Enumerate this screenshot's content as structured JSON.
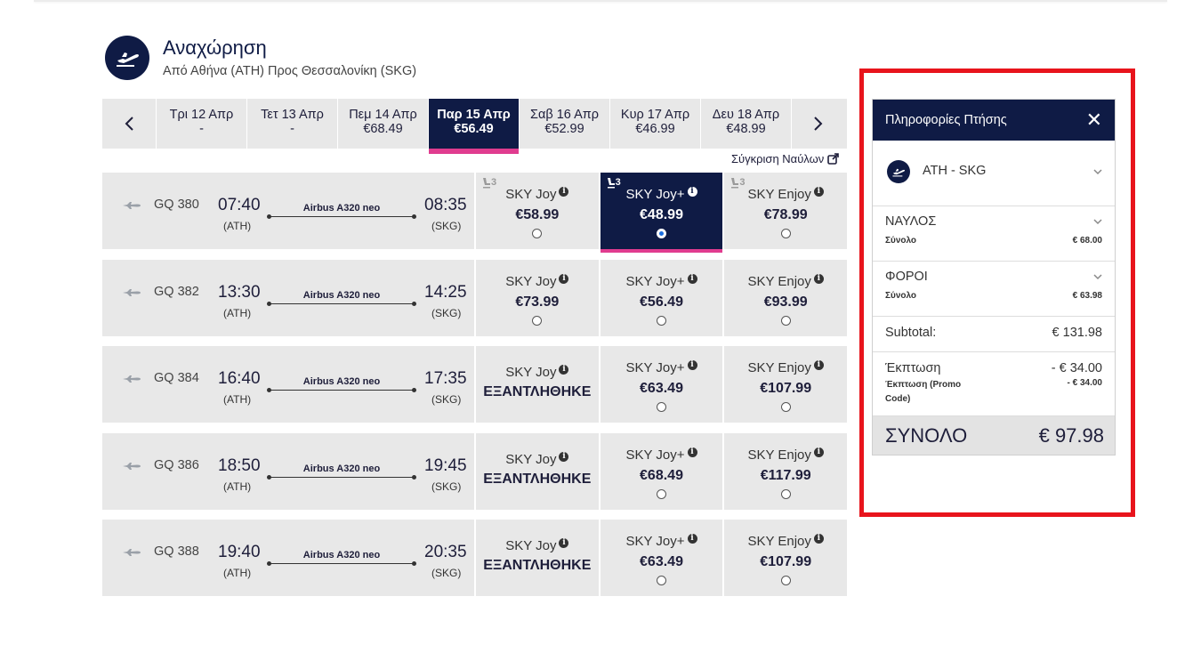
{
  "header": {
    "title": "Αναχώρηση",
    "subtitle": "Από Αθήνα (ATH) Προς Θεσσαλονίκη (SKG)"
  },
  "dates": [
    {
      "label": "Τρι 12 Απρ",
      "price": "-"
    },
    {
      "label": "Τετ 13 Απρ",
      "price": "-"
    },
    {
      "label": "Πεμ 14 Απρ",
      "price": "€68.49"
    },
    {
      "label": "Παρ 15 Απρ",
      "price": "€56.49",
      "active": true
    },
    {
      "label": "Σαβ 16 Απρ",
      "price": "€52.99"
    },
    {
      "label": "Κυρ 17 Απρ",
      "price": "€46.99"
    },
    {
      "label": "Δευ 18 Απρ",
      "price": "€48.99"
    }
  ],
  "compare_label": "Σύγκριση Ναύλων",
  "flights": [
    {
      "number": "GQ 380",
      "dep_time": "07:40",
      "dep_airport": "(ATH)",
      "arr_time": "08:35",
      "arr_airport": "(SKG)",
      "aircraft": "Airbus A320 neo",
      "fares": [
        {
          "name": "SKY Joy",
          "price": "€58.99",
          "seats": "3"
        },
        {
          "name": "SKY Joy+",
          "price": "€48.99",
          "seats": "3",
          "selected": true
        },
        {
          "name": "SKY Enjoy",
          "price": "€78.99",
          "seats": "3"
        }
      ]
    },
    {
      "number": "GQ 382",
      "dep_time": "13:30",
      "dep_airport": "(ATH)",
      "arr_time": "14:25",
      "arr_airport": "(SKG)",
      "aircraft": "Airbus A320 neo",
      "fares": [
        {
          "name": "SKY Joy",
          "price": "€73.99"
        },
        {
          "name": "SKY Joy+",
          "price": "€56.49"
        },
        {
          "name": "SKY Enjoy",
          "price": "€93.99"
        }
      ]
    },
    {
      "number": "GQ 384",
      "dep_time": "16:40",
      "dep_airport": "(ATH)",
      "arr_time": "17:35",
      "arr_airport": "(SKG)",
      "aircraft": "Airbus A320 neo",
      "fares": [
        {
          "name": "SKY Joy",
          "sold_out": "ΕΞΑΝΤΛΗΘΗΚΕ"
        },
        {
          "name": "SKY Joy+",
          "price": "€63.49"
        },
        {
          "name": "SKY Enjoy",
          "price": "€107.99"
        }
      ]
    },
    {
      "number": "GQ 386",
      "dep_time": "18:50",
      "dep_airport": "(ATH)",
      "arr_time": "19:45",
      "arr_airport": "(SKG)",
      "aircraft": "Airbus A320 neo",
      "fares": [
        {
          "name": "SKY Joy",
          "sold_out": "ΕΞΑΝΤΛΗΘΗΚΕ"
        },
        {
          "name": "SKY Joy+",
          "price": "€68.49"
        },
        {
          "name": "SKY Enjoy",
          "price": "€117.99"
        }
      ]
    },
    {
      "number": "GQ 388",
      "dep_time": "19:40",
      "dep_airport": "(ATH)",
      "arr_time": "20:35",
      "arr_airport": "(SKG)",
      "aircraft": "Airbus A320 neo",
      "fares": [
        {
          "name": "SKY Joy",
          "sold_out": "ΕΞΑΝΤΛΗΘΗΚΕ"
        },
        {
          "name": "SKY Joy+",
          "price": "€63.49"
        },
        {
          "name": "SKY Enjoy",
          "price": "€107.99"
        }
      ]
    }
  ],
  "panel": {
    "title": "Πληροφορίες Πτήσης",
    "close_icon": "close-icon",
    "route": "ATH - SKG",
    "fare_section": {
      "title": "ΝΑΥΛΟΣ",
      "label": "Σύνολο",
      "value": "€ 68.00"
    },
    "tax_section": {
      "title": "ΦΟΡΟΙ",
      "label": "Σύνολο",
      "value": "€ 63.98"
    },
    "subtotal": {
      "label": "Subtotal:",
      "value": "€ 131.98"
    },
    "discount": {
      "label": "Έκπτωση",
      "value": "- € 34.00",
      "promo_label": "Έκπτωση (Promo Code)",
      "promo_value": "- € 34.00"
    },
    "total": {
      "label": "ΣΥΝΟΛΟ",
      "value": "€ 97.98"
    }
  },
  "colors": {
    "navy": "#0f1b45",
    "pink": "#e03c8f",
    "highlight_frame": "#e8141c",
    "row_bg": "#e8e8e8"
  }
}
